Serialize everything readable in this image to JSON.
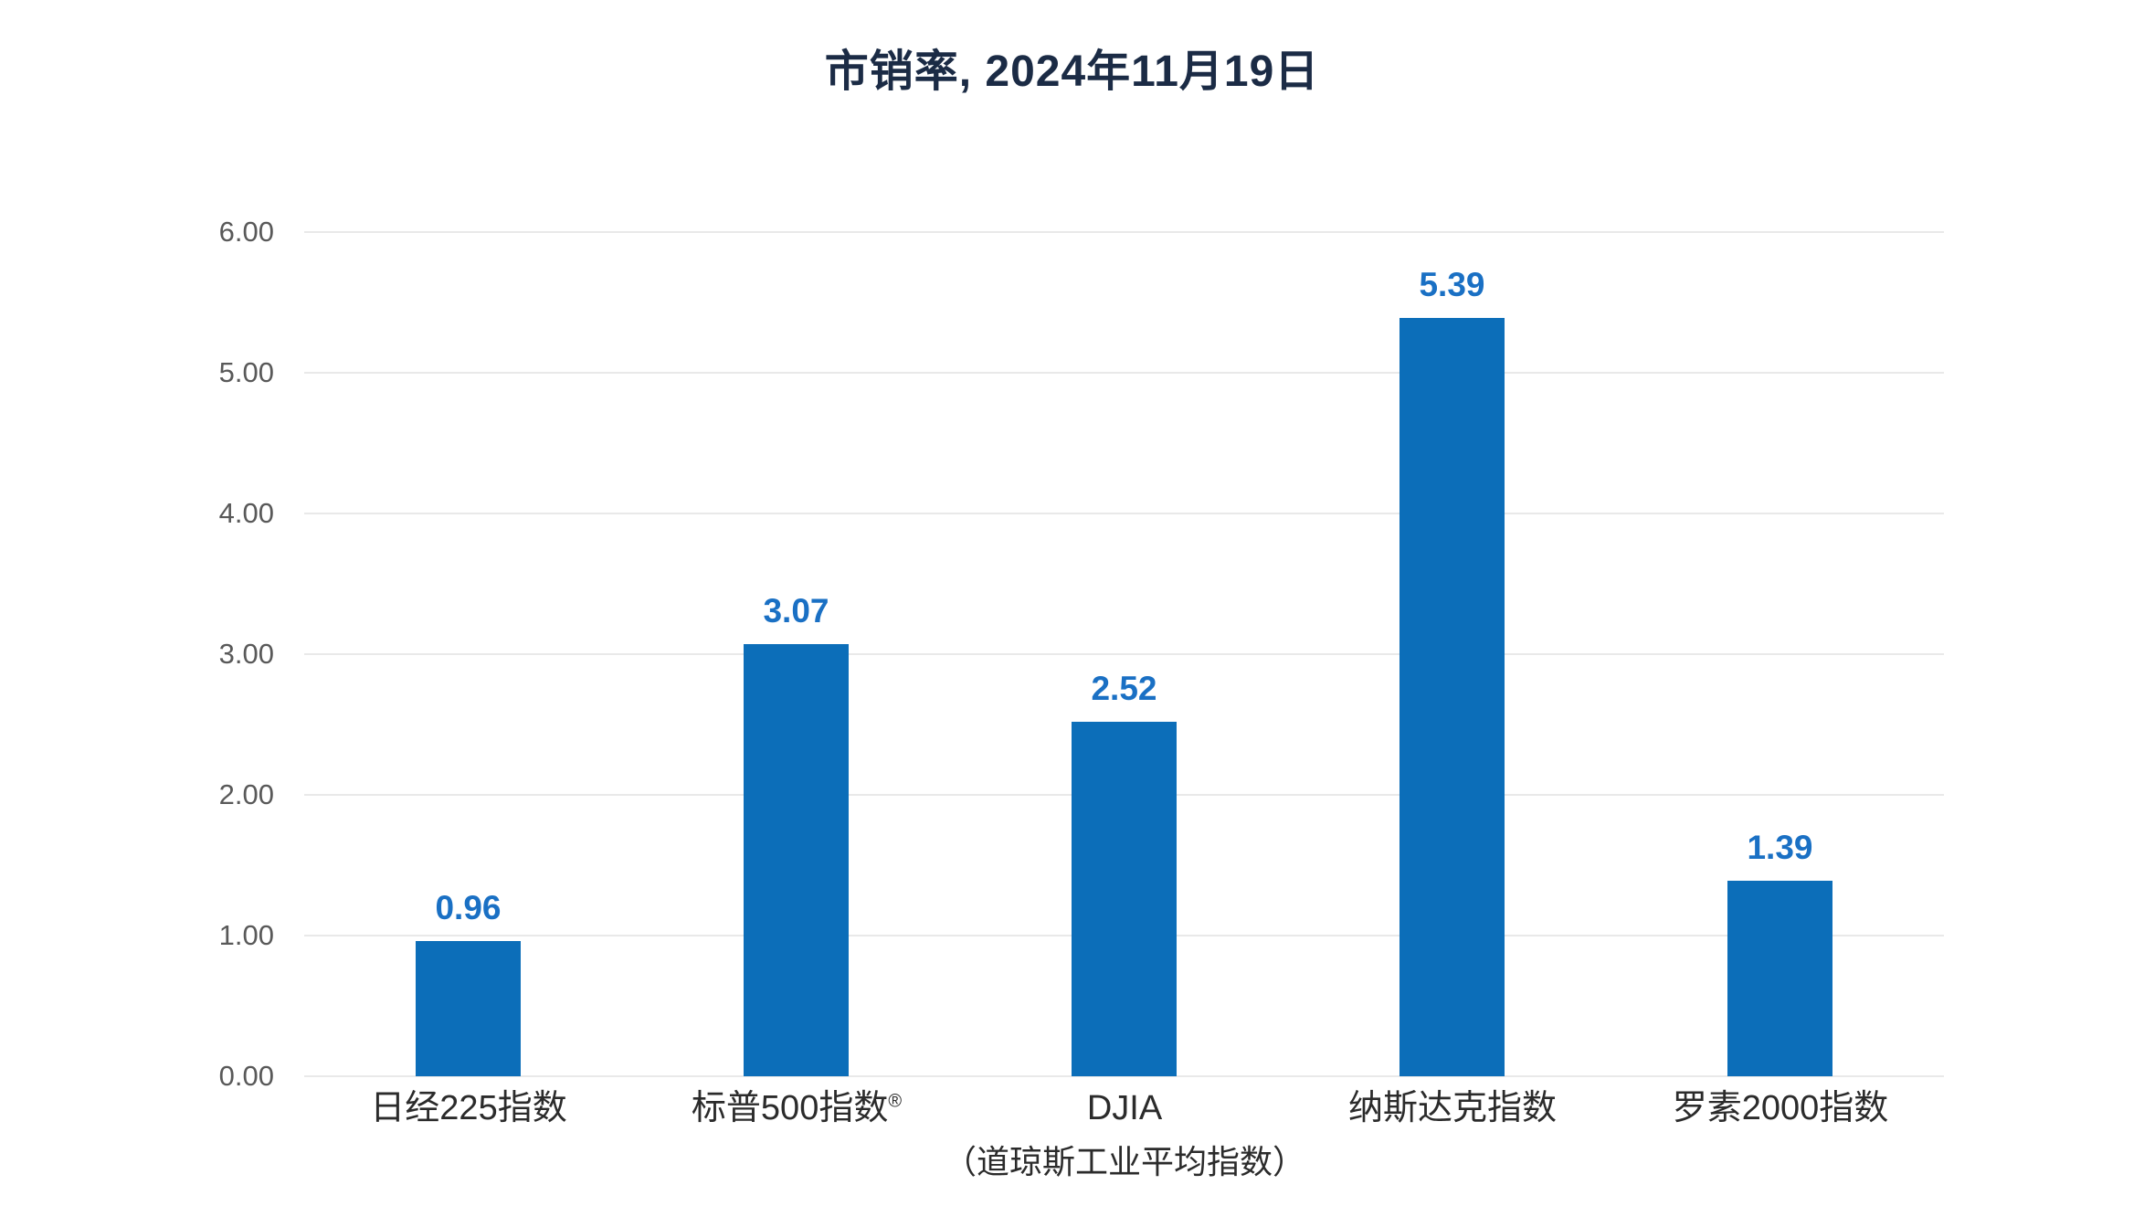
{
  "title": "市销率, 2024年11月19日",
  "colors": {
    "title": "#1B2B45",
    "bar": "#0C6EB9",
    "value_label": "#1A70C4",
    "gridline": "#E9E9E9",
    "axis_tick_label": "#595959",
    "category_label": "#2B2B2B",
    "background": "#FFFFFF"
  },
  "chart_data": {
    "type": "bar",
    "title": "市销率, 2024年11月19日",
    "categories": [
      {
        "label": "日经225指数"
      },
      {
        "label": "标普500指数",
        "superscript": "®"
      },
      {
        "label": "DJIA",
        "sublabel": "（道琼斯工业平均指数）"
      },
      {
        "label": "纳斯达克指数"
      },
      {
        "label": "罗素2000指数"
      }
    ],
    "values": [
      0.96,
      3.07,
      2.52,
      5.39,
      1.39
    ],
    "value_labels": [
      "0.96",
      "3.07",
      "2.52",
      "5.39",
      "1.39"
    ],
    "ylim": [
      0,
      6
    ],
    "y_ticks": [
      {
        "value": 6,
        "label": "6.00"
      },
      {
        "value": 5,
        "label": "5.00"
      },
      {
        "value": 4,
        "label": "4.00"
      },
      {
        "value": 3,
        "label": "3.00"
      },
      {
        "value": 2,
        "label": "2.00"
      },
      {
        "value": 1,
        "label": "1.00"
      },
      {
        "value": 0,
        "label": "0.00"
      }
    ],
    "grid": "horizontal",
    "legend": "none",
    "xlabel": "",
    "ylabel": ""
  }
}
